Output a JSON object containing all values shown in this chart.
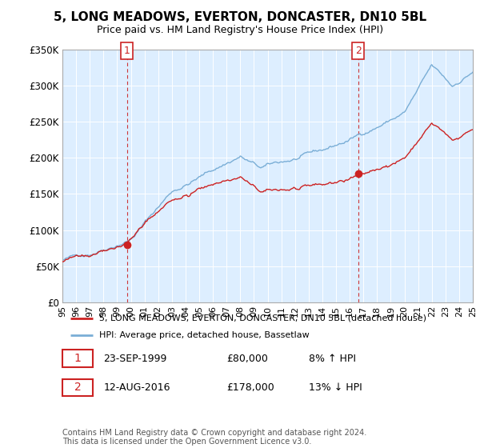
{
  "title": "5, LONG MEADOWS, EVERTON, DONCASTER, DN10 5BL",
  "subtitle": "Price paid vs. HM Land Registry's House Price Index (HPI)",
  "legend_line1": "5, LONG MEADOWS, EVERTON, DONCASTER, DN10 5BL (detached house)",
  "legend_line2": "HPI: Average price, detached house, Bassetlaw",
  "annotation1_date": "23-SEP-1999",
  "annotation1_price": "£80,000",
  "annotation1_hpi": "8% ↑ HPI",
  "annotation2_date": "12-AUG-2016",
  "annotation2_price": "£178,000",
  "annotation2_hpi": "13% ↓ HPI",
  "footnote": "Contains HM Land Registry data © Crown copyright and database right 2024.\nThis data is licensed under the Open Government Licence v3.0.",
  "sale1_year": 1999.72,
  "sale1_price": 80000,
  "sale2_year": 2016.62,
  "sale2_price": 178000,
  "hpi_color": "#7aaed6",
  "price_color": "#cc2222",
  "vline_color": "#cc2222",
  "plot_bg_color": "#ddeeff",
  "ylim": [
    0,
    350000
  ],
  "xlim_start": 1995,
  "xlim_end": 2025,
  "yticks": [
    0,
    50000,
    100000,
    150000,
    200000,
    250000,
    300000,
    350000
  ],
  "ytick_labels": [
    "£0",
    "£50K",
    "£100K",
    "£150K",
    "£200K",
    "£250K",
    "£300K",
    "£350K"
  ],
  "xticks": [
    1995,
    1996,
    1997,
    1998,
    1999,
    2000,
    2001,
    2002,
    2003,
    2004,
    2005,
    2006,
    2007,
    2008,
    2009,
    2010,
    2011,
    2012,
    2013,
    2014,
    2015,
    2016,
    2017,
    2018,
    2019,
    2020,
    2021,
    2022,
    2023,
    2024,
    2025
  ]
}
